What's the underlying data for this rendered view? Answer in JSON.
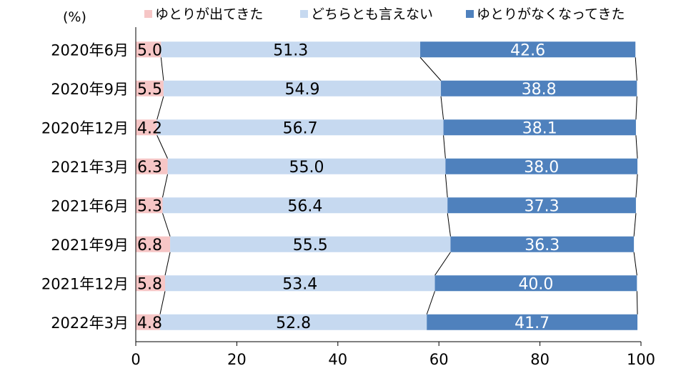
{
  "chart_data": {
    "type": "bar",
    "stacked": true,
    "orientation": "horizontal",
    "unit_label": "(%)",
    "categories": [
      "2020年6月",
      "2020年9月",
      "2020年12月",
      "2021年3月",
      "2021年6月",
      "2021年9月",
      "2021年12月",
      "2022年3月"
    ],
    "series": [
      {
        "name": "ゆとりが出てきた",
        "color": "#f6c6c6",
        "values": [
          5.0,
          5.5,
          4.2,
          6.3,
          5.3,
          6.8,
          5.8,
          4.8
        ]
      },
      {
        "name": "どちらとも言えない",
        "color": "#c6d9f0",
        "values": [
          51.3,
          54.9,
          56.7,
          55.0,
          56.4,
          55.5,
          53.4,
          52.8
        ]
      },
      {
        "name": "ゆとりがなくなってきた",
        "color": "#4f81bd",
        "values": [
          42.6,
          38.8,
          38.1,
          38.0,
          37.3,
          36.3,
          40.0,
          41.7
        ]
      }
    ],
    "value_labels": [
      [
        "5.0",
        "5.5",
        "4.2",
        "6.3",
        "5.3",
        "6.8",
        "5.8",
        "4.8"
      ],
      [
        "51.3",
        "54.9",
        "56.7",
        "55.0",
        "56.4",
        "55.5",
        "53.4",
        "52.8"
      ],
      [
        "42.6",
        "38.8",
        "38.1",
        "38.0",
        "37.3",
        "36.3",
        "40.0",
        "41.7"
      ]
    ],
    "value_label_colors": [
      "#000000",
      "#000000",
      "#ffffff"
    ],
    "xlim": [
      0,
      100
    ],
    "xticks": [
      0,
      20,
      40,
      60,
      80,
      100
    ],
    "xtick_labels": [
      "0",
      "20",
      "40",
      "60",
      "80",
      "100"
    ],
    "series_lines": true,
    "legend_position": "top",
    "grid": false
  }
}
